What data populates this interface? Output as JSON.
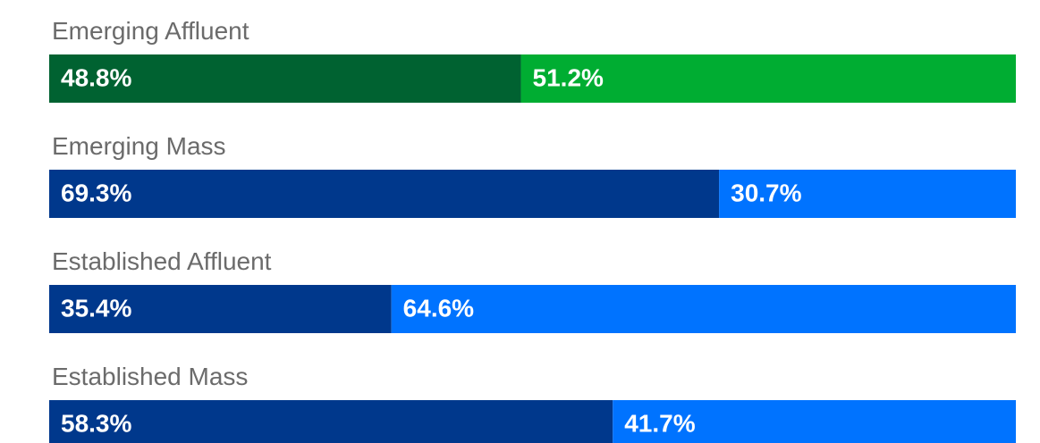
{
  "chart_data": {
    "type": "bar",
    "orientation": "horizontal",
    "stacked": true,
    "categories": [
      "Emerging Affluent",
      "Emerging Mass",
      "Established Affluent",
      "Established Mass"
    ],
    "series": [
      {
        "colors": [
          "#006231",
          "#00388c",
          "#00388c",
          "#00388c"
        ],
        "values": [
          48.8,
          69.3,
          35.4,
          58.3
        ],
        "value_labels": [
          "48.8%",
          "69.3%",
          "35.4%",
          "58.3%"
        ]
      },
      {
        "colors": [
          "#00ad32",
          "#0073ff",
          "#0073ff",
          "#0073ff"
        ],
        "values": [
          51.2,
          30.7,
          64.6,
          41.7
        ],
        "value_labels": [
          "51.2%",
          "30.7%",
          "64.6%",
          "41.7%"
        ]
      }
    ],
    "xlim": [
      0,
      100
    ]
  }
}
